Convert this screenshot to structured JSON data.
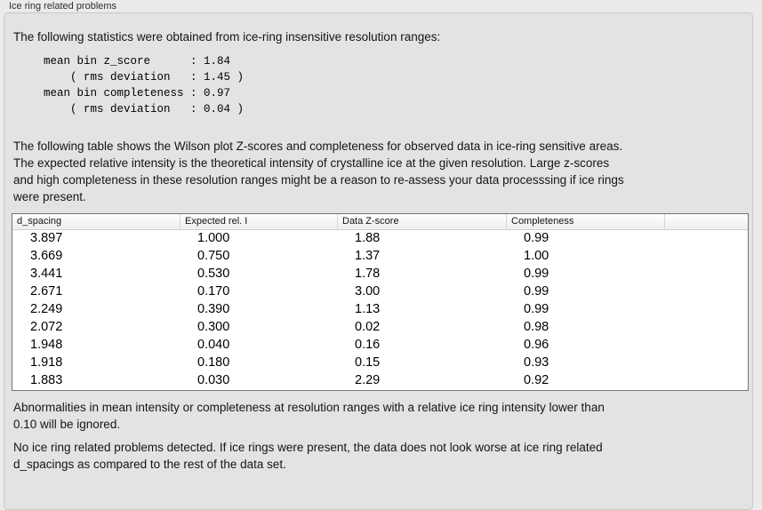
{
  "panel": {
    "title": "Ice ring related problems"
  },
  "intro": "The following statistics were obtained from ice-ring insensitive resolution ranges:",
  "stats_block": [
    "mean bin z_score      : 1.84",
    "    ( rms deviation   : 1.45 )",
    "mean bin completeness : 0.97",
    "    ( rms deviation   : 0.04 )"
  ],
  "description_lines": [
    "The following table shows the Wilson plot Z-scores and completeness for observed data in ice-ring sensitive areas.",
    "The expected relative intensity is the theoretical intensity of crystalline ice at the given resolution. Large z-scores",
    "and high completeness in these resolution ranges might be a reason to re-assess your data processsing if ice rings",
    "were present."
  ],
  "table": {
    "headers": [
      "d_spacing",
      "Expected rel. I",
      "Data Z-score",
      "Completeness",
      ""
    ],
    "rows": [
      [
        "3.897",
        "1.000",
        "1.88",
        "0.99"
      ],
      [
        "3.669",
        "0.750",
        "1.37",
        "1.00"
      ],
      [
        "3.441",
        "0.530",
        "1.78",
        "0.99"
      ],
      [
        "2.671",
        "0.170",
        "3.00",
        "0.99"
      ],
      [
        "2.249",
        "0.390",
        "1.13",
        "0.99"
      ],
      [
        "2.072",
        "0.300",
        "0.02",
        "0.98"
      ],
      [
        "1.948",
        "0.040",
        "0.16",
        "0.96"
      ],
      [
        "1.918",
        "0.180",
        "0.15",
        "0.93"
      ],
      [
        "1.883",
        "0.030",
        "2.29",
        "0.92"
      ]
    ]
  },
  "footnote_lines": [
    "Abnormalities in mean intensity or completeness at resolution ranges with a relative ice ring intensity lower than",
    "0.10 will be ignored."
  ],
  "conclusion_lines": [
    "No ice ring related problems detected. If ice rings were present, the data does not look worse at ice ring related",
    "d_spacings as compared to the rest of the data set."
  ],
  "colors": {
    "page_background": "#ebebeb",
    "panel_background": "#e3e3e3",
    "panel_border": "#c7c7c7",
    "table_border": "#757575",
    "table_body_background": "#ffffff",
    "text": "#1a1a1a"
  }
}
